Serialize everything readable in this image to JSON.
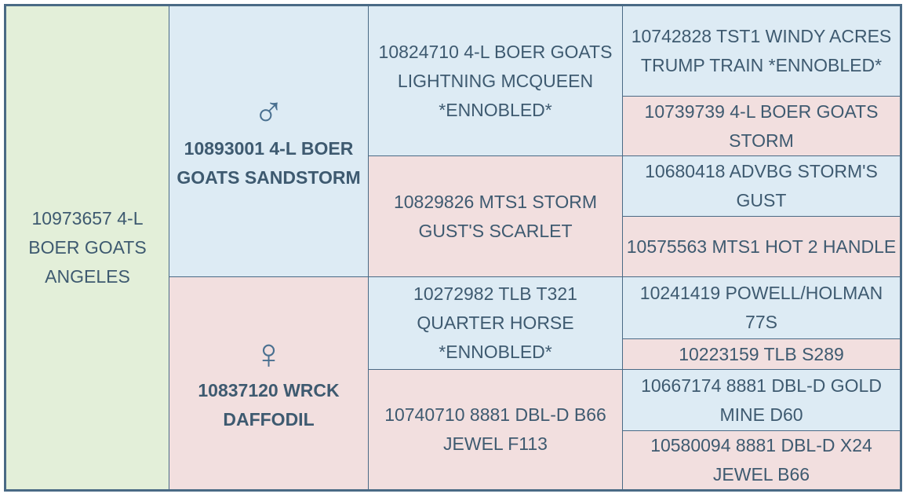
{
  "animal": {
    "label": "10973657 4-L BOER GOATS ANGELES"
  },
  "sire": {
    "symbol": "♂",
    "label": "10893001 4-L BOER GOATS SANDSTORM",
    "sire": {
      "label": "10824710 4-L BOER GOATS LIGHTNING MCQUEEN *ENNOBLED*",
      "sire": {
        "label": "10742828 TST1 WINDY ACRES TRUMP TRAIN *ENNOBLED*"
      },
      "dam": {
        "label": "10739739 4-L BOER GOATS STORM"
      }
    },
    "dam": {
      "label": "10829826 MTS1 STORM GUST'S SCARLET",
      "sire": {
        "label": "10680418 ADVBG STORM'S GUST"
      },
      "dam": {
        "label": "10575563 MTS1 HOT 2 HANDLE"
      }
    }
  },
  "dam": {
    "symbol": "♀",
    "label": "10837120 WRCK DAFFODIL",
    "sire": {
      "label": "10272982 TLB T321 QUARTER HORSE *ENNOBLED*",
      "sire": {
        "label": "10241419 POWELL/HOLMAN 77S"
      },
      "dam": {
        "label": "10223159 TLB S289"
      }
    },
    "dam": {
      "label": "10740710 8881 DBL-D B66 JEWEL F113",
      "sire": {
        "label": "10667174 8881 DBL-D GOLD MINE D60"
      },
      "dam": {
        "label": "10580094 8881 DBL-D X24 JEWEL B66"
      }
    }
  }
}
